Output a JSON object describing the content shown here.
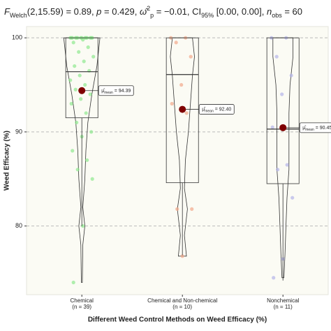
{
  "chart_data": {
    "type": "box",
    "subtitle": [
      {
        "text": "F",
        "italic": true
      },
      {
        "text": "Welch",
        "sub": true
      },
      {
        "text": "(2,15.59) = 0.89, "
      },
      {
        "text": "p",
        "italic": true
      },
      {
        "text": " = 0.429, "
      },
      {
        "text": "ω̂",
        "italic": true
      },
      {
        "text": "2",
        "sup": true
      },
      {
        "text": "p",
        "sub": true
      },
      {
        "text": " = −0.01, CI"
      },
      {
        "text": "95%",
        "sub": true
      },
      {
        "text": " [0.00, 0.00], "
      },
      {
        "text": "n",
        "italic": true
      },
      {
        "text": "obs",
        "sub": true
      },
      {
        "text": " = 60"
      }
    ],
    "x_label": "Different Weed Control Methods on Weed Efficacy (%)",
    "y_label": "Weed Efficacy (%)",
    "ylim": [
      72.7,
      101.2
    ],
    "yticks": [
      80,
      90,
      100
    ],
    "grid": true,
    "mean_color": "#7f0000",
    "groups": [
      {
        "name": "Chemical",
        "n_label": "(n = 39)",
        "color": "#8fe88f",
        "box": {
          "low": 80,
          "q1": 91.5,
          "median": 96.4,
          "q3": 100,
          "high": 100
        },
        "mean": 94.39,
        "mean_label": {
          "symbol": "μ̂",
          "sub": "mean",
          "text": " = 94.39"
        },
        "points": [
          100,
          100,
          100,
          100,
          100,
          100,
          100,
          100,
          100,
          100,
          100,
          100,
          100,
          100,
          99.8,
          99.5,
          99,
          98.5,
          98,
          97.5,
          97,
          96.5,
          96,
          95.5,
          95,
          94.5,
          94,
          93.5,
          93,
          92,
          91,
          90,
          89.5,
          88,
          87,
          86,
          85,
          80,
          74
        ],
        "violin": {
          "y": [
            74,
            78,
            80,
            82,
            85,
            88,
            91,
            94,
            97,
            100
          ],
          "width": [
            0.005,
            0.01,
            0.03,
            0.01,
            0.03,
            0.04,
            0.06,
            0.1,
            0.15,
            0.18
          ]
        }
      },
      {
        "name": "Chemical and Non-chemical",
        "n_label": "(n = 10)",
        "color": "#f2a88a",
        "box": {
          "low": 76.9,
          "q1": 84.6,
          "median": 96.1,
          "q3": 100,
          "high": 100
        },
        "mean": 92.4,
        "mean_label": {
          "symbol": "μ̂",
          "sub": "mean",
          "text": " = 92.40"
        },
        "points": [
          100,
          100,
          99.5,
          98,
          95,
          93,
          92,
          81.8,
          81.8,
          76.8
        ],
        "violin": {
          "y": [
            76.8,
            79,
            81.8,
            84,
            87,
            90,
            93,
            96,
            98,
            100
          ],
          "width": [
            0.04,
            0.02,
            0.05,
            0.02,
            0.03,
            0.06,
            0.08,
            0.1,
            0.12,
            0.1
          ]
        }
      },
      {
        "name": "Nonchemical",
        "n_label": "(n = 11)",
        "color": "#b3b3e8",
        "box": {
          "low": 74.2,
          "q1": 84.5,
          "median": 90.3,
          "q3": 100,
          "high": 100
        },
        "mean": 90.45,
        "mean_label": {
          "symbol": "μ̂",
          "sub": "mean",
          "text": " = 90.45"
        },
        "points": [
          100,
          100,
          98,
          96,
          94,
          90.5,
          86.5,
          86,
          83,
          76.5,
          74.5
        ],
        "violin": {
          "y": [
            74.5,
            77,
            80,
            83,
            86,
            89,
            92,
            95,
            98,
            100
          ],
          "width": [
            0.01,
            0.02,
            0.03,
            0.04,
            0.06,
            0.06,
            0.06,
            0.07,
            0.1,
            0.1
          ]
        }
      }
    ]
  }
}
